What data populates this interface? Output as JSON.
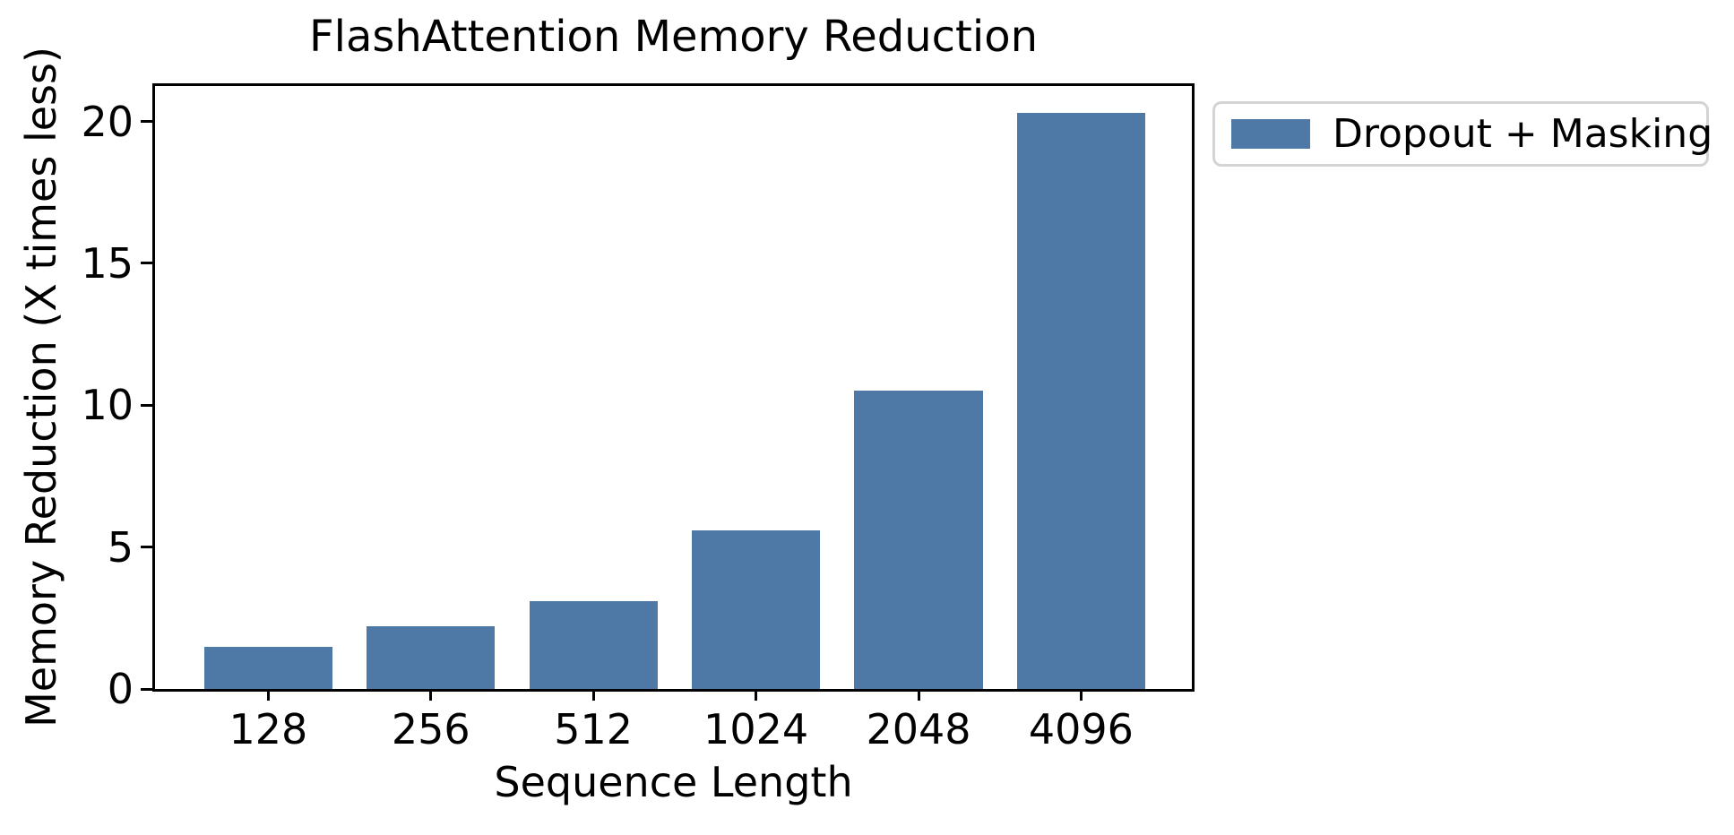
{
  "chart_data": {
    "type": "bar",
    "title": "FlashAttention Memory Reduction",
    "xlabel": "Sequence Length",
    "ylabel": "Memory Reduction (X times less)",
    "categories": [
      "128",
      "256",
      "512",
      "1024",
      "2048",
      "4096"
    ],
    "series": [
      {
        "name": "Dropout + Masking",
        "values": [
          1.5,
          2.2,
          3.1,
          5.6,
          10.5,
          20.3
        ]
      }
    ],
    "ylim": [
      0,
      21.25
    ],
    "yticks": [
      0,
      5,
      10,
      15,
      20
    ],
    "grid": false,
    "legend_position": "outside-upper-right",
    "bar_color": "#4E79A7"
  },
  "legend": {
    "label": "Dropout + Masking",
    "swatch_color": "#4E79A7"
  }
}
